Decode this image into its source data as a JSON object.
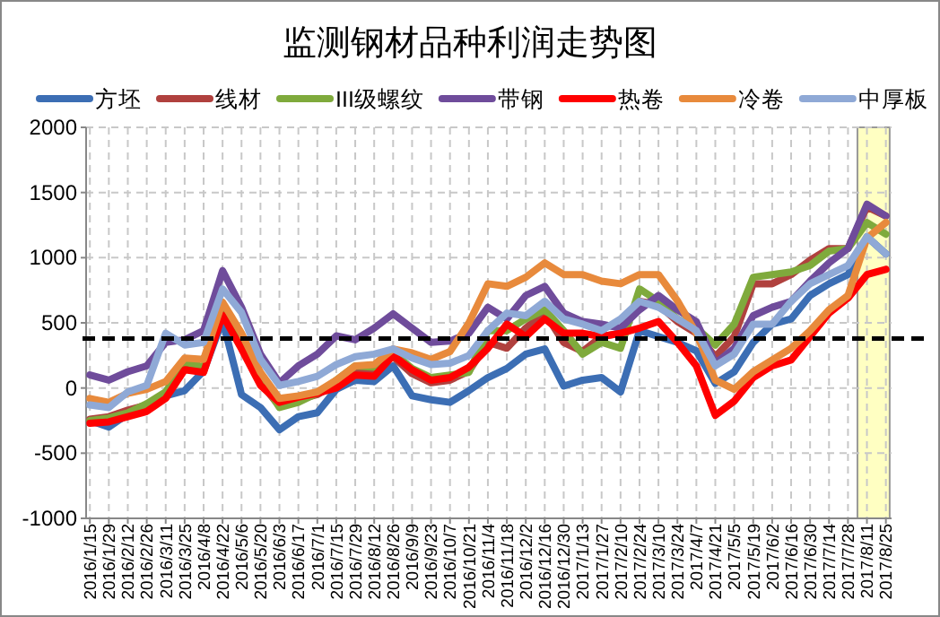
{
  "chart_data": {
    "type": "line",
    "title": "监测钢材品种利润走势图",
    "categories": [
      "2016/1/15",
      "2016/1/29",
      "2016/2/12",
      "2016/2/26",
      "2016/3/11",
      "2016/3/25",
      "2016/4/8",
      "2016/4/22",
      "2016/5/6",
      "2016/5/20",
      "2016/6/3",
      "2016/6/17",
      "2016/7/1",
      "2016/7/15",
      "2016/7/29",
      "2016/8/12",
      "2016/8/26",
      "2016/9/9",
      "2016/9/23",
      "2016/10/7",
      "2016/10/21",
      "2016/11/4",
      "2016/11/18",
      "2016/12/2",
      "2016/12/16",
      "2016/12/30",
      "2017/1/13",
      "2017/1/27",
      "2017/2/10",
      "2017/2/24",
      "2017/3/10",
      "2017/3/24",
      "2017/4/7",
      "2017/4/21",
      "2017/5/5",
      "2017/5/19",
      "2017/6/2",
      "2017/6/16",
      "2017/6/30",
      "2017/7/14",
      "2017/7/28",
      "2017/8/11",
      "2017/8/25"
    ],
    "series": [
      {
        "name": "方坯",
        "color": "#3c6eb4",
        "values": [
          -250,
          -300,
          -200,
          -150,
          -60,
          -20,
          130,
          520,
          -50,
          -150,
          -320,
          -220,
          -190,
          -10,
          60,
          50,
          170,
          -60,
          -90,
          -110,
          -20,
          80,
          150,
          260,
          300,
          15,
          60,
          80,
          -30,
          440,
          395,
          350,
          285,
          35,
          125,
          350,
          490,
          530,
          710,
          800,
          870,
          1160,
          1030
        ]
      },
      {
        "name": "线材",
        "color": "#b0413e",
        "values": [
          -240,
          -220,
          -170,
          -130,
          -60,
          170,
          140,
          590,
          330,
          40,
          -140,
          -90,
          -50,
          30,
          130,
          140,
          240,
          110,
          40,
          60,
          130,
          350,
          305,
          460,
          575,
          350,
          280,
          395,
          420,
          665,
          640,
          510,
          420,
          240,
          395,
          800,
          800,
          870,
          980,
          1070,
          1070,
          1390,
          1320
        ]
      },
      {
        "name": "III级螺纹",
        "color": "#7faa3c",
        "values": [
          -250,
          -230,
          -190,
          -120,
          -30,
          200,
          160,
          580,
          370,
          80,
          -150,
          -110,
          -40,
          60,
          170,
          160,
          270,
          150,
          80,
          100,
          120,
          440,
          440,
          530,
          600,
          440,
          260,
          350,
          305,
          760,
          665,
          530,
          460,
          330,
          490,
          850,
          870,
          890,
          940,
          1050,
          1070,
          1270,
          1180
        ]
      },
      {
        "name": "带钢",
        "color": "#6f4c9b",
        "values": [
          100,
          60,
          125,
          170,
          350,
          370,
          440,
          900,
          620,
          260,
          40,
          170,
          260,
          400,
          370,
          460,
          570,
          460,
          350,
          360,
          420,
          620,
          530,
          710,
          780,
          575,
          510,
          490,
          460,
          600,
          710,
          600,
          510,
          190,
          305,
          555,
          620,
          665,
          820,
          960,
          1070,
          1410,
          1320
        ]
      },
      {
        "name": "热卷",
        "color": "#ff0000",
        "values": [
          -270,
          -260,
          -220,
          -180,
          -80,
          140,
          120,
          560,
          300,
          20,
          -110,
          -70,
          -40,
          0,
          100,
          90,
          250,
          140,
          60,
          80,
          160,
          305,
          490,
          395,
          530,
          420,
          420,
          395,
          420,
          460,
          510,
          350,
          170,
          -210,
          -100,
          80,
          170,
          215,
          395,
          575,
          690,
          870,
          910
        ]
      },
      {
        "name": "冷卷",
        "color": "#e88a3c",
        "values": [
          -80,
          -110,
          -40,
          -10,
          50,
          230,
          220,
          660,
          420,
          120,
          -80,
          -60,
          -30,
          60,
          170,
          180,
          300,
          270,
          220,
          280,
          500,
          800,
          780,
          850,
          960,
          870,
          870,
          820,
          800,
          870,
          870,
          670,
          420,
          60,
          -10,
          125,
          215,
          305,
          440,
          600,
          710,
          1150,
          1270
        ]
      },
      {
        "name": "中厚板",
        "color": "#8fa9d6",
        "values": [
          -130,
          -150,
          -30,
          20,
          420,
          330,
          350,
          760,
          580,
          220,
          20,
          50,
          90,
          180,
          240,
          260,
          300,
          230,
          180,
          190,
          250,
          440,
          575,
          555,
          665,
          530,
          490,
          440,
          530,
          665,
          620,
          530,
          440,
          170,
          260,
          490,
          490,
          665,
          800,
          870,
          940,
          1160,
          1030
        ]
      }
    ],
    "ylim": [
      -1000,
      2000
    ],
    "yticks": [
      -1000,
      -500,
      0,
      500,
      1000,
      1500,
      2000
    ],
    "grid": true,
    "legend": "top",
    "ref_lines": [
      {
        "axis": "y",
        "value": 380,
        "color": "#000000",
        "line_style": "dashed"
      }
    ],
    "bands": [
      {
        "axis": "x",
        "from": "2017/8/11",
        "to": "2017/8/25",
        "color": "#ffff99"
      }
    ]
  }
}
